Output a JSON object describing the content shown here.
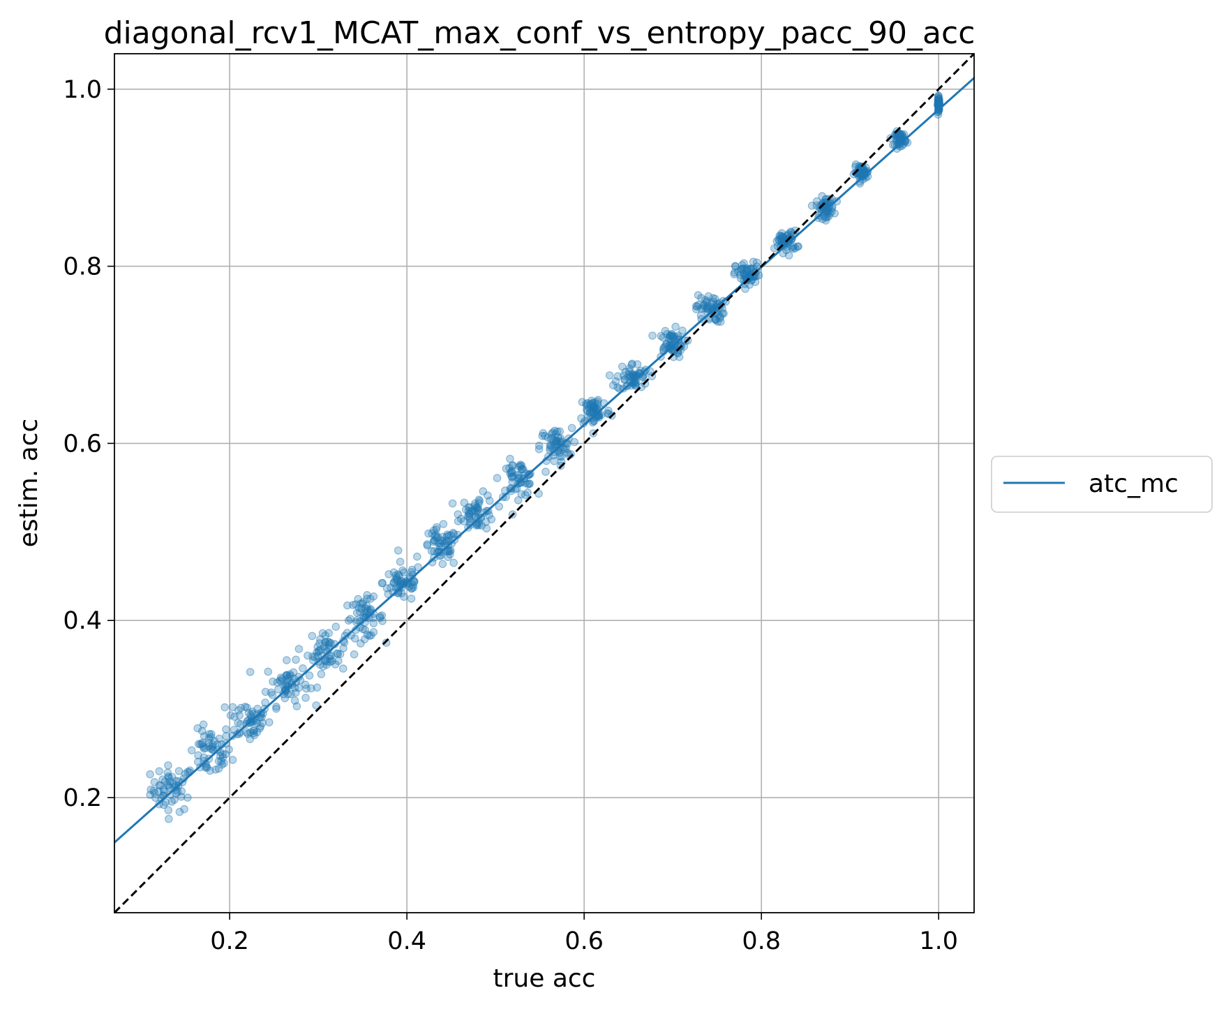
{
  "chart_data": {
    "type": "scatter",
    "title": "diagonal_rcv1_MCAT_max_conf_vs_entropy_pacc_90_acc",
    "xlabel": "true acc",
    "ylabel": "estim. acc",
    "xlim": [
      0.07,
      1.04
    ],
    "ylim": [
      0.07,
      1.04
    ],
    "xticks": [
      0.2,
      0.4,
      0.6,
      0.8,
      1.0
    ],
    "yticks": [
      0.2,
      0.4,
      0.6,
      0.8,
      1.0
    ],
    "xtick_labels": [
      "0.2",
      "0.4",
      "0.6",
      "0.8",
      "1.0"
    ],
    "ytick_labels": [
      "0.2",
      "0.4",
      "0.6",
      "0.8",
      "1.0"
    ],
    "grid": true,
    "legend": {
      "placement": "outside-right",
      "entries": [
        "atc_mc"
      ]
    },
    "series": [
      {
        "name": "atc_mc",
        "color": "#1f77b4",
        "fit_line": {
          "slope": 0.89,
          "intercept": 0.087
        },
        "clusters": [
          {
            "x": 0.135,
            "y": 0.21,
            "spread_x": 0.012,
            "spread_y": 0.013
          },
          {
            "x": 0.178,
            "y": 0.25,
            "spread_x": 0.012,
            "spread_y": 0.013
          },
          {
            "x": 0.222,
            "y": 0.288,
            "spread_x": 0.012,
            "spread_y": 0.013
          },
          {
            "x": 0.265,
            "y": 0.328,
            "spread_x": 0.012,
            "spread_y": 0.012
          },
          {
            "x": 0.31,
            "y": 0.365,
            "spread_x": 0.011,
            "spread_y": 0.012
          },
          {
            "x": 0.352,
            "y": 0.403,
            "spread_x": 0.011,
            "spread_y": 0.011
          },
          {
            "x": 0.395,
            "y": 0.443,
            "spread_x": 0.011,
            "spread_y": 0.011
          },
          {
            "x": 0.438,
            "y": 0.482,
            "spread_x": 0.01,
            "spread_y": 0.011
          },
          {
            "x": 0.48,
            "y": 0.522,
            "spread_x": 0.01,
            "spread_y": 0.01
          },
          {
            "x": 0.525,
            "y": 0.56,
            "spread_x": 0.01,
            "spread_y": 0.01
          },
          {
            "x": 0.568,
            "y": 0.597,
            "spread_x": 0.009,
            "spread_y": 0.01
          },
          {
            "x": 0.612,
            "y": 0.637,
            "spread_x": 0.009,
            "spread_y": 0.009
          },
          {
            "x": 0.655,
            "y": 0.675,
            "spread_x": 0.009,
            "spread_y": 0.008
          },
          {
            "x": 0.698,
            "y": 0.713,
            "spread_x": 0.008,
            "spread_y": 0.008
          },
          {
            "x": 0.742,
            "y": 0.752,
            "spread_x": 0.008,
            "spread_y": 0.008
          },
          {
            "x": 0.785,
            "y": 0.79,
            "spread_x": 0.007,
            "spread_y": 0.007
          },
          {
            "x": 0.828,
            "y": 0.828,
            "spread_x": 0.006,
            "spread_y": 0.006
          },
          {
            "x": 0.872,
            "y": 0.866,
            "spread_x": 0.005,
            "spread_y": 0.006
          },
          {
            "x": 0.913,
            "y": 0.906,
            "spread_x": 0.004,
            "spread_y": 0.004
          },
          {
            "x": 0.957,
            "y": 0.944,
            "spread_x": 0.003,
            "spread_y": 0.004
          },
          {
            "x": 1.0,
            "y": 0.983,
            "spread_x": 0.0005,
            "spread_y": 0.004
          }
        ]
      }
    ],
    "reference_line": {
      "slope": 1,
      "intercept": 0,
      "color": "#000000",
      "style": "dashed"
    }
  }
}
